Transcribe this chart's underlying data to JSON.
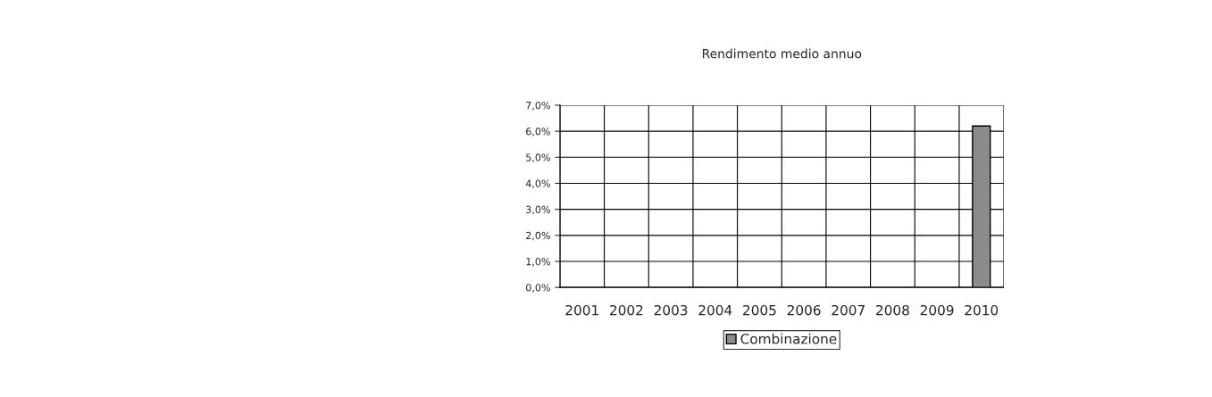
{
  "chart_data": {
    "type": "bar",
    "title": "Rendimento medio annuo",
    "categories": [
      "2001",
      "2002",
      "2003",
      "2004",
      "2005",
      "2006",
      "2007",
      "2008",
      "2009",
      "2010"
    ],
    "series": [
      {
        "name": "Combinazione",
        "color": "#8c8c8c",
        "values": [
          null,
          null,
          null,
          null,
          null,
          null,
          null,
          null,
          null,
          6.2
        ]
      }
    ],
    "ylim": [
      0,
      7
    ],
    "yticks": [
      {
        "value": 0,
        "label": "0,0%"
      },
      {
        "value": 1,
        "label": "1,0%"
      },
      {
        "value": 2,
        "label": "2,0%"
      },
      {
        "value": 3,
        "label": "3,0%"
      },
      {
        "value": 4,
        "label": "4,0%"
      },
      {
        "value": 5,
        "label": "5,0%"
      },
      {
        "value": 6,
        "label": "6,0%"
      },
      {
        "value": 7,
        "label": "7,0%"
      }
    ],
    "grid": true,
    "legend": "bottom"
  }
}
